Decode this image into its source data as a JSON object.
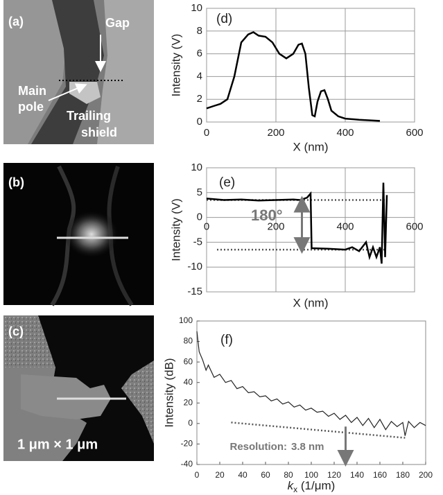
{
  "images": [
    {
      "label": "(a)",
      "gap": "Gap",
      "main_pole": [
        "Main",
        "pole"
      ],
      "trailing_shield": [
        "Trailing",
        "shield"
      ]
    },
    {
      "label": "(b)"
    },
    {
      "label": "(c)",
      "scale": "1 μm × 1 μm"
    }
  ],
  "chart_data": [
    {
      "type": "line",
      "title": "(d)",
      "xlabel": "X (nm)",
      "ylabel": "Intensity (V)",
      "x": [
        0,
        20,
        40,
        60,
        80,
        100,
        120,
        135,
        150,
        170,
        190,
        210,
        230,
        250,
        265,
        275,
        285,
        295,
        305,
        312,
        320,
        330,
        340,
        350,
        360,
        380,
        400,
        440,
        500
      ],
      "series": [
        {
          "color": "#000000",
          "values": [
            1.2,
            1.4,
            1.6,
            2.0,
            4.0,
            7.0,
            7.7,
            7.9,
            7.6,
            7.5,
            7.0,
            6.0,
            5.6,
            6.0,
            6.8,
            6.9,
            6.0,
            3.0,
            0.6,
            0.5,
            1.8,
            2.7,
            2.8,
            2.0,
            1.0,
            0.5,
            0.3,
            0.2,
            0.1
          ]
        }
      ],
      "xlim": [
        0,
        600
      ],
      "ylim": [
        0,
        10
      ],
      "xticks": [
        0,
        200,
        400,
        600
      ],
      "yticks": [
        0,
        2,
        4,
        6,
        8,
        10
      ],
      "grid": true
    },
    {
      "type": "line",
      "title": "(e)",
      "xlabel": "X (nm)",
      "ylabel": "Intensity (V)",
      "x": [
        0,
        50,
        100,
        150,
        200,
        250,
        270,
        290,
        300,
        303,
        350,
        400,
        420,
        440,
        460,
        470,
        480,
        490,
        500,
        505,
        510,
        515,
        520
      ],
      "series": [
        {
          "color": "#000000",
          "values": [
            3.8,
            3.5,
            3.6,
            3.4,
            3.5,
            3.6,
            3.5,
            4.0,
            4.8,
            -6.2,
            -6.3,
            -6.5,
            -6.0,
            -6.8,
            -5.0,
            -8.0,
            -6.0,
            -8.0,
            -6.0,
            -9.3,
            7.0,
            -8.0,
            4.5
          ]
        }
      ],
      "xlim": [
        0,
        600
      ],
      "ylim": [
        -15,
        10
      ],
      "xticks": [
        0,
        200,
        400,
        600
      ],
      "yticks": [
        -15,
        -10,
        -5,
        0,
        5,
        10
      ],
      "grid": true,
      "xtick_labels_at_zero": true,
      "reference_lines": [
        {
          "x": [
            0,
            520
          ],
          "values": [
            3.5,
            3.5
          ]
        },
        {
          "x": [
            30,
            520
          ],
          "values": [
            -6.5,
            -6.5
          ]
        }
      ],
      "arrows": [
        {
          "x": [
            275,
            275
          ],
          "values": [
            3.5,
            -6.5
          ],
          "double": true
        }
      ],
      "annotations": [
        "180°"
      ]
    },
    {
      "type": "line",
      "title": "(f)",
      "xlabel": {
        "italic": "k",
        "sub": "x",
        "text": " (1/μm)"
      },
      "ylabel": "Intensity (dB)",
      "x": [
        0,
        2,
        5,
        8,
        10,
        15,
        20,
        25,
        30,
        35,
        40,
        45,
        50,
        55,
        60,
        65,
        70,
        75,
        80,
        85,
        90,
        95,
        100,
        105,
        110,
        115,
        120,
        125,
        130,
        135,
        140,
        145,
        150,
        155,
        160,
        165,
        170,
        175,
        180,
        182,
        185,
        190,
        195,
        200
      ],
      "series": [
        {
          "color": "#222222",
          "values": [
            90,
            70,
            62,
            52,
            57,
            45,
            48,
            40,
            42,
            34,
            36,
            30,
            31,
            26,
            27,
            22,
            24,
            19,
            21,
            16,
            18,
            13,
            15,
            11,
            12,
            7,
            10,
            4,
            8,
            1,
            6,
            -2,
            5,
            -4,
            4,
            -6,
            2,
            -3,
            1,
            -12,
            2,
            -4,
            1,
            -2
          ]
        }
      ],
      "xlim": [
        0,
        200
      ],
      "ylim": [
        -40,
        100
      ],
      "xticks": [
        0,
        20,
        40,
        60,
        80,
        100,
        120,
        140,
        160,
        180,
        200
      ],
      "yticks": [
        -40,
        -20,
        0,
        20,
        40,
        60,
        80,
        100
      ],
      "grid": false,
      "reference_lines": [
        {
          "x": [
            30,
            182
          ],
          "values": [
            1,
            -14
          ]
        }
      ],
      "arrows": [
        {
          "x": [
            130,
            130
          ],
          "values": [
            -3,
            -38
          ],
          "double": false
        }
      ],
      "annotations": [
        "Resolution:",
        "3.8 nm"
      ]
    }
  ]
}
